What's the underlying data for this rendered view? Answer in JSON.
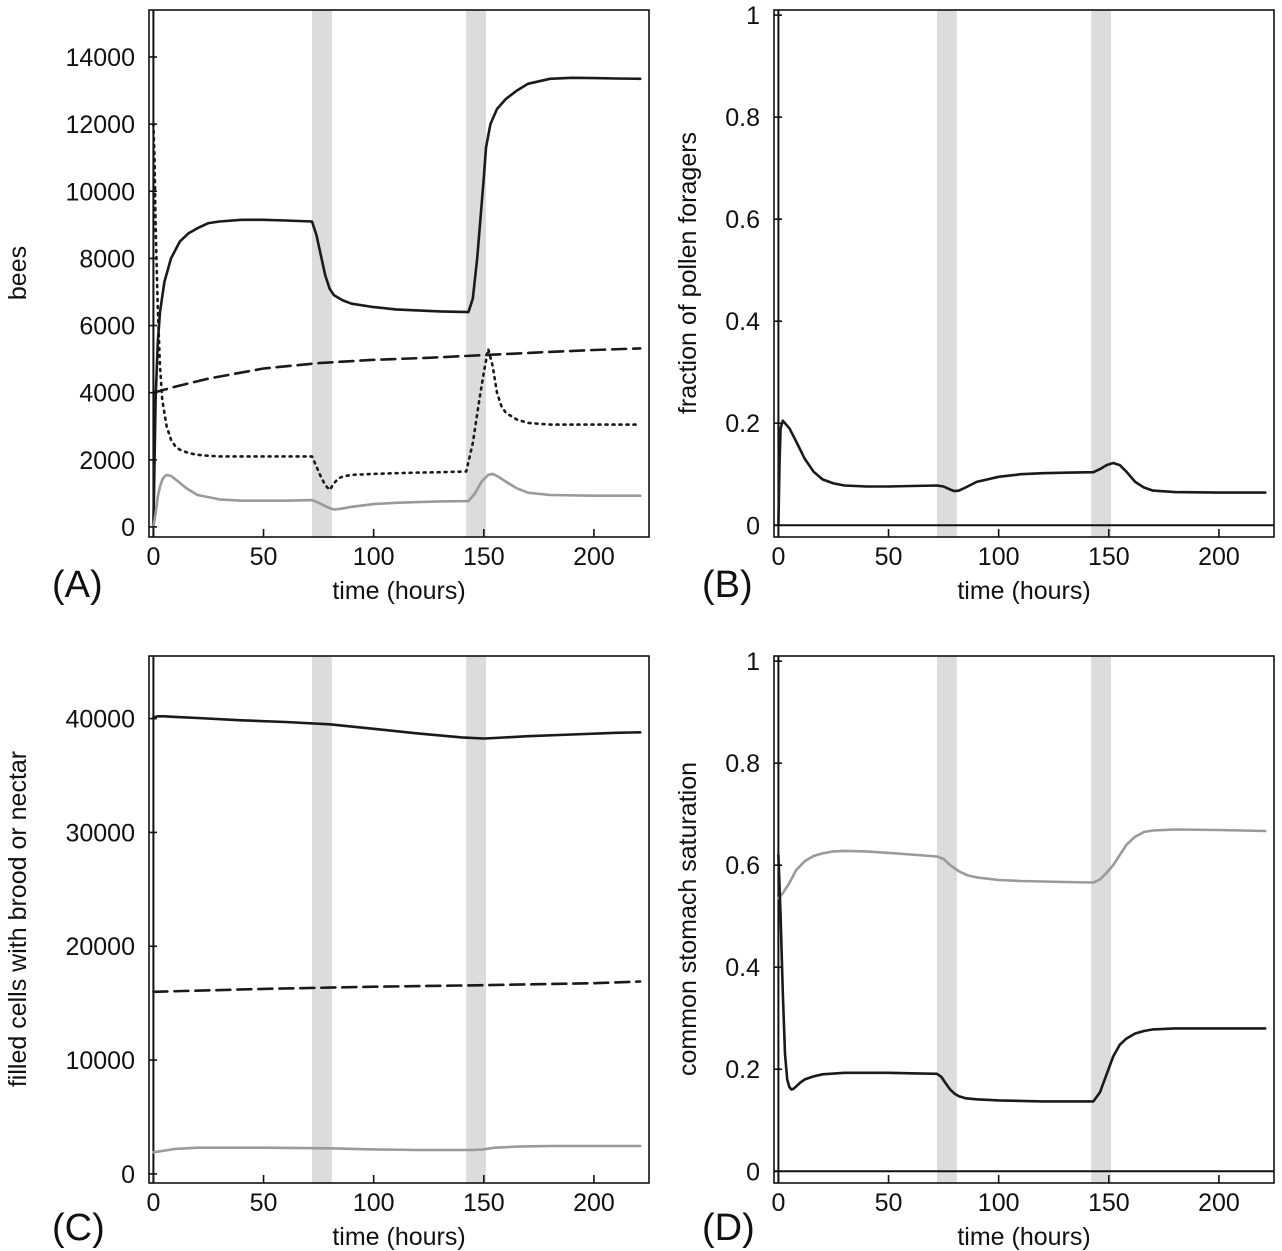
{
  "figure": {
    "panels": [
      {
        "id": "A",
        "panel_label": "(A)",
        "xlabel": "time (hours)",
        "ylabel": "bees",
        "xlim": [
          -2,
          225
        ],
        "ylim": [
          -300,
          15400
        ],
        "xticks": [
          0,
          50,
          100,
          150,
          200
        ],
        "yticks": [
          0,
          2000,
          4000,
          6000,
          8000,
          10000,
          12000,
          14000
        ],
        "ytick_labels": [
          "0",
          "2000",
          "4000",
          "6000",
          "8000",
          "10000",
          "12000",
          "14000"
        ],
        "shaded_intervals": [
          [
            72,
            81
          ],
          [
            142,
            151
          ]
        ],
        "hline_zero": false,
        "series": [
          {
            "style": "solid",
            "color": "#1a1a1a",
            "x": [
              0,
              1,
              2,
              3,
              5,
              8,
              12,
              16,
              20,
              25,
              30,
              40,
              50,
              60,
              72,
              74,
              76,
              78,
              80,
              82,
              86,
              90,
              100,
              110,
              120,
              130,
              143,
              145,
              147,
              149,
              150,
              151,
              153,
              156,
              160,
              165,
              170,
              180,
              190,
              200,
              210,
              221
            ],
            "y": [
              0,
              3800,
              5500,
              6400,
              7300,
              8000,
              8500,
              8750,
              8900,
              9050,
              9100,
              9150,
              9150,
              9130,
              9100,
              8700,
              8100,
              7500,
              7100,
              6900,
              6750,
              6650,
              6550,
              6480,
              6450,
              6420,
              6400,
              6800,
              8000,
              9600,
              10400,
              11300,
              12000,
              12450,
              12750,
              13000,
              13200,
              13350,
              13380,
              13370,
              13360,
              13350
            ]
          },
          {
            "style": "dashed",
            "color": "#1a1a1a",
            "x": [
              0,
              10,
              25,
              50,
              75,
              100,
              125,
              150,
              175,
              200,
              221
            ],
            "y": [
              4000,
              4180,
              4420,
              4720,
              4880,
              4980,
              5040,
              5120,
              5200,
              5270,
              5320
            ]
          },
          {
            "style": "dotted",
            "color": "#1a1a1a",
            "x": [
              0,
              0.5,
              1,
              2,
              3,
              4,
              6,
              8,
              10,
              12,
              16,
              20,
              25,
              30,
              40,
              50,
              60,
              72,
              74,
              76,
              78,
              80,
              82,
              84,
              86,
              90,
              100,
              110,
              120,
              130,
              142,
              145,
              148,
              150,
              152,
              154,
              156,
              158,
              160,
              165,
              170,
              180,
              200,
              221
            ],
            "y": [
              12000,
              11000,
              9000,
              6500,
              4800,
              3800,
              3000,
              2600,
              2400,
              2300,
              2200,
              2150,
              2120,
              2100,
              2100,
              2100,
              2100,
              2100,
              1800,
              1500,
              1250,
              1100,
              1300,
              1450,
              1500,
              1550,
              1580,
              1600,
              1620,
              1630,
              1650,
              2500,
              3800,
              4600,
              5300,
              4800,
              4000,
              3600,
              3400,
              3200,
              3100,
              3050,
              3050,
              3050
            ]
          },
          {
            "style": "solid",
            "color": "#9a9a9a",
            "x": [
              0,
              1,
              2,
              3,
              4,
              5,
              6,
              8,
              10,
              15,
              20,
              30,
              40,
              60,
              72,
              75,
              78,
              80,
              82,
              85,
              90,
              100,
              110,
              120,
              130,
              143,
              146,
              149,
              152,
              154,
              156,
              160,
              165,
              170,
              180,
              200,
              221
            ],
            "y": [
              0,
              400,
              900,
              1200,
              1400,
              1500,
              1550,
              1520,
              1420,
              1150,
              950,
              820,
              780,
              780,
              800,
              720,
              620,
              560,
              520,
              540,
              600,
              680,
              720,
              740,
              760,
              770,
              1000,
              1350,
              1550,
              1580,
              1520,
              1350,
              1150,
              1020,
              950,
              930,
              930
            ]
          }
        ]
      },
      {
        "id": "B",
        "panel_label": "(B)",
        "xlabel": "time (hours)",
        "ylabel": "fraction of pollen foragers",
        "xlim": [
          -2,
          225
        ],
        "ylim": [
          -0.023,
          1.01
        ],
        "xticks": [
          0,
          50,
          100,
          150,
          200
        ],
        "yticks": [
          0,
          0.2,
          0.4,
          0.6,
          0.8,
          1
        ],
        "ytick_labels": [
          "0",
          "0.2",
          "0.4",
          "0.6",
          "0.8",
          "1"
        ],
        "shaded_intervals": [
          [
            72,
            81
          ],
          [
            142,
            151
          ]
        ],
        "hline_zero": true,
        "series": [
          {
            "style": "solid",
            "color": "#1a1a1a",
            "x": [
              0,
              0.5,
              1,
              2,
              3,
              5,
              8,
              12,
              16,
              20,
              25,
              30,
              40,
              50,
              60,
              72,
              75,
              78,
              80,
              82,
              85,
              90,
              100,
              110,
              120,
              130,
              143,
              146,
              149,
              152,
              155,
              158,
              162,
              166,
              170,
              180,
              200,
              221
            ],
            "y": [
              0,
              0.12,
              0.19,
              0.205,
              0.2,
              0.19,
              0.165,
              0.13,
              0.105,
              0.09,
              0.082,
              0.078,
              0.076,
              0.076,
              0.077,
              0.078,
              0.076,
              0.07,
              0.067,
              0.068,
              0.074,
              0.085,
              0.095,
              0.1,
              0.102,
              0.103,
              0.104,
              0.11,
              0.118,
              0.122,
              0.118,
              0.105,
              0.085,
              0.074,
              0.068,
              0.065,
              0.064,
              0.064
            ]
          }
        ]
      },
      {
        "id": "C",
        "panel_label": "(C)",
        "xlabel": "time (hours)",
        "ylabel": "filled cells with brood or nectar",
        "xlim": [
          -2,
          225
        ],
        "ylim": [
          -800,
          45500
        ],
        "xticks": [
          0,
          50,
          100,
          150,
          200
        ],
        "yticks": [
          0,
          10000,
          20000,
          30000,
          40000
        ],
        "ytick_labels": [
          "0",
          "10000",
          "20000",
          "30000",
          "40000"
        ],
        "shaded_intervals": [
          [
            72,
            81
          ],
          [
            142,
            151
          ]
        ],
        "hline_zero": false,
        "series": [
          {
            "style": "solid",
            "color": "#1a1a1a",
            "x": [
              0,
              2,
              5,
              10,
              20,
              40,
              60,
              80,
              100,
              120,
              140,
              150,
              155,
              170,
              190,
              210,
              221
            ],
            "y": [
              40100,
              40200,
              40200,
              40150,
              40050,
              39850,
              39700,
              39500,
              39100,
              38700,
              38350,
              38250,
              38300,
              38450,
              38600,
              38750,
              38800
            ]
          },
          {
            "style": "dashed",
            "color": "#1a1a1a",
            "x": [
              0,
              50,
              100,
              150,
              200,
              221
            ],
            "y": [
              16000,
              16250,
              16450,
              16580,
              16750,
              16900
            ]
          },
          {
            "style": "solid",
            "color": "#9a9a9a",
            "x": [
              0,
              5,
              10,
              20,
              30,
              50,
              80,
              100,
              120,
              145,
              150,
              155,
              165,
              180,
              200,
              221
            ],
            "y": [
              1900,
              2050,
              2200,
              2300,
              2300,
              2300,
              2250,
              2150,
              2100,
              2100,
              2150,
              2300,
              2400,
              2450,
              2450,
              2450
            ]
          }
        ]
      },
      {
        "id": "D",
        "panel_label": "(D)",
        "xlabel": "time (hours)",
        "ylabel": "common stomach saturation",
        "xlim": [
          -2,
          225
        ],
        "ylim": [
          -0.023,
          1.01
        ],
        "xticks": [
          0,
          50,
          100,
          150,
          200
        ],
        "yticks": [
          0,
          0.2,
          0.4,
          0.6,
          0.8,
          1
        ],
        "ytick_labels": [
          "0",
          "0.2",
          "0.4",
          "0.6",
          "0.8",
          "1"
        ],
        "shaded_intervals": [
          [
            72,
            81
          ],
          [
            142,
            151
          ]
        ],
        "hline_zero": true,
        "series": [
          {
            "style": "solid",
            "color": "#9a9a9a",
            "x": [
              0,
              2,
              5,
              8,
              12,
              16,
              20,
              25,
              30,
              40,
              50,
              60,
              72,
              75,
              78,
              82,
              86,
              90,
              100,
              110,
              120,
              130,
              143,
              146,
              149,
              152,
              155,
              158,
              162,
              166,
              170,
              180,
              200,
              221
            ],
            "y": [
              0.535,
              0.545,
              0.565,
              0.59,
              0.608,
              0.618,
              0.623,
              0.627,
              0.628,
              0.627,
              0.624,
              0.621,
              0.617,
              0.612,
              0.6,
              0.588,
              0.58,
              0.576,
              0.571,
              0.569,
              0.568,
              0.567,
              0.566,
              0.572,
              0.585,
              0.6,
              0.62,
              0.64,
              0.656,
              0.665,
              0.668,
              0.67,
              0.669,
              0.667
            ]
          },
          {
            "style": "solid",
            "color": "#1a1a1a",
            "x": [
              0,
              1,
              2,
              3,
              4,
              5,
              6,
              7,
              8,
              10,
              12,
              16,
              20,
              30,
              40,
              50,
              60,
              72,
              74,
              76,
              78,
              80,
              82,
              85,
              90,
              100,
              110,
              120,
              130,
              143,
              146,
              149,
              152,
              155,
              158,
              162,
              166,
              170,
              180,
              200,
              221
            ],
            "y": [
              0.62,
              0.5,
              0.35,
              0.23,
              0.18,
              0.165,
              0.16,
              0.162,
              0.166,
              0.174,
              0.18,
              0.186,
              0.19,
              0.193,
              0.193,
              0.193,
              0.192,
              0.191,
              0.185,
              0.172,
              0.16,
              0.152,
              0.147,
              0.143,
              0.141,
              0.139,
              0.138,
              0.137,
              0.137,
              0.137,
              0.155,
              0.19,
              0.225,
              0.248,
              0.26,
              0.27,
              0.275,
              0.278,
              0.28,
              0.28,
              0.28
            ]
          }
        ]
      }
    ]
  }
}
